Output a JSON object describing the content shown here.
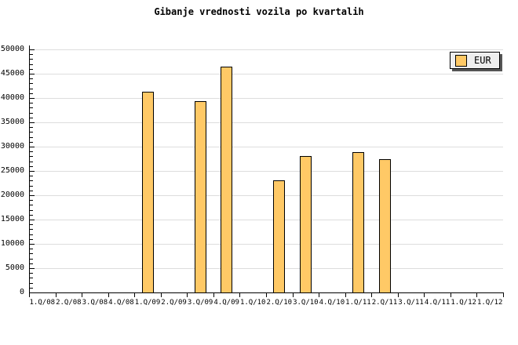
{
  "title": "Gibanje vrednosti vozila po kvartalih",
  "legend": {
    "label": "EUR"
  },
  "colors": {
    "background": "#FFFFFF",
    "text": "#000000",
    "axis": "#000000",
    "gridline": "#DDDDDD",
    "bar_fill": "#FFC966",
    "bar_border": "#000000",
    "legend_bg": "#EEEEEE",
    "legend_border": "#000000",
    "legend_shadow": "#555555"
  },
  "chart_data": {
    "type": "bar",
    "title": "Gibanje vrednosti vozila po kvartalih",
    "categories": [
      "1.Q/08",
      "2.Q/08",
      "3.Q/08",
      "4.Q/08",
      "1.Q/09",
      "2.Q/09",
      "3.Q/09",
      "4.Q/09",
      "1.Q/10",
      "2.Q/10",
      "3.Q/10",
      "4.Q/10",
      "1.Q/11",
      "2.Q/11",
      "3.Q/11",
      "4.Q/11",
      "1.Q/12",
      "1.Q/12"
    ],
    "series": [
      {
        "name": "EUR",
        "color": "#FFC966",
        "values": [
          null,
          null,
          null,
          null,
          41300,
          null,
          39400,
          46500,
          null,
          23000,
          28000,
          null,
          28900,
          27500,
          null,
          null,
          null,
          null
        ]
      }
    ],
    "xlabel": "",
    "ylabel": "",
    "ylim": [
      0,
      50000
    ],
    "ytick_step": 5000,
    "y_minor_tick_step": 1000,
    "yticks": [
      0,
      5000,
      10000,
      15000,
      20000,
      25000,
      30000,
      35000,
      40000,
      45000,
      50000
    ],
    "grid": "horizontal",
    "legend_position": "top-right"
  }
}
